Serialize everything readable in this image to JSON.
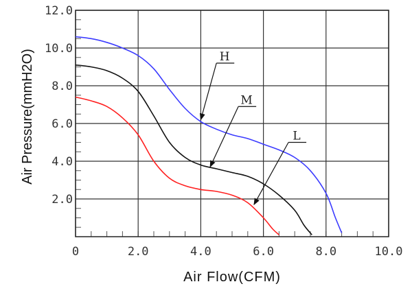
{
  "chart_data": {
    "type": "line",
    "xlabel": "Air Flow(CFM)",
    "ylabel": "Air Pressure(mmH2O)",
    "xlim": [
      0,
      10
    ],
    "ylim": [
      0,
      12
    ],
    "x_ticks": [
      0,
      2,
      4,
      6,
      8,
      10
    ],
    "x_tick_labels": [
      "0",
      "2.0",
      "4.0",
      "6.0",
      "8.0",
      "10.0"
    ],
    "y_ticks": [
      2,
      4,
      6,
      8,
      10,
      12
    ],
    "y_tick_labels": [
      "2.0",
      "4.0",
      "6.0",
      "8.0",
      "10.0",
      "12.0"
    ],
    "grid": true,
    "series": [
      {
        "name": "H",
        "color": "#3b3bff",
        "points": [
          [
            0,
            10.6
          ],
          [
            0.5,
            10.5
          ],
          [
            1.0,
            10.3
          ],
          [
            1.5,
            10.0
          ],
          [
            2.0,
            9.6
          ],
          [
            2.5,
            8.9
          ],
          [
            3.0,
            7.8
          ],
          [
            3.5,
            6.8
          ],
          [
            4.0,
            6.1
          ],
          [
            4.5,
            5.7
          ],
          [
            5.0,
            5.4
          ],
          [
            5.5,
            5.2
          ],
          [
            6.0,
            4.9
          ],
          [
            6.5,
            4.6
          ],
          [
            7.0,
            4.2
          ],
          [
            7.5,
            3.5
          ],
          [
            8.0,
            2.3
          ],
          [
            8.3,
            1.0
          ],
          [
            8.5,
            0.2
          ]
        ]
      },
      {
        "name": "M",
        "color": "#111111",
        "points": [
          [
            0,
            9.1
          ],
          [
            0.5,
            9.0
          ],
          [
            1.0,
            8.8
          ],
          [
            1.5,
            8.4
          ],
          [
            2.0,
            7.7
          ],
          [
            2.5,
            6.4
          ],
          [
            3.0,
            5.0
          ],
          [
            3.5,
            4.2
          ],
          [
            4.0,
            3.8
          ],
          [
            4.5,
            3.6
          ],
          [
            5.0,
            3.4
          ],
          [
            5.5,
            3.2
          ],
          [
            6.0,
            2.8
          ],
          [
            6.5,
            2.2
          ],
          [
            7.0,
            1.4
          ],
          [
            7.3,
            0.6
          ],
          [
            7.55,
            0.1
          ]
        ]
      },
      {
        "name": "L",
        "color": "#ff2020",
        "points": [
          [
            0,
            7.4
          ],
          [
            0.5,
            7.2
          ],
          [
            1.0,
            6.9
          ],
          [
            1.5,
            6.3
          ],
          [
            2.0,
            5.4
          ],
          [
            2.5,
            4.0
          ],
          [
            3.0,
            3.1
          ],
          [
            3.5,
            2.7
          ],
          [
            4.0,
            2.5
          ],
          [
            4.5,
            2.4
          ],
          [
            5.0,
            2.2
          ],
          [
            5.5,
            1.8
          ],
          [
            6.0,
            1.0
          ],
          [
            6.3,
            0.4
          ],
          [
            6.5,
            0.1
          ]
        ]
      }
    ],
    "annotations": [
      {
        "text": "H",
        "target": [
          4.0,
          6.2
        ],
        "label_at": [
          4.5,
          9.2
        ]
      },
      {
        "text": "M",
        "target": [
          4.3,
          3.7
        ],
        "label_at": [
          5.2,
          6.9
        ]
      },
      {
        "text": "L",
        "target": [
          5.7,
          1.7
        ],
        "label_at": [
          6.8,
          5.0
        ]
      }
    ]
  }
}
